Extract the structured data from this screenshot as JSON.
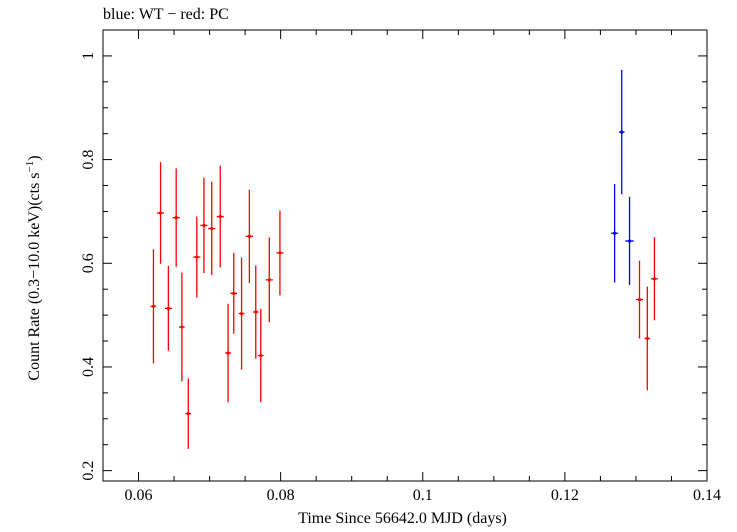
{
  "chart_data": {
    "type": "scatter",
    "title": "blue: WT − red: PC",
    "xlabel": "Time Since 56642.0 MJD (days)",
    "ylabel_main": "Count Rate (0.3−10.0 keV)(cts s",
    "ylabel_sup": "−1",
    "ylabel_end": ")",
    "xlim": [
      0.055,
      0.14
    ],
    "ylim": [
      0.18,
      1.05
    ],
    "xticks": [
      0.06,
      0.08,
      0.1,
      0.12,
      0.14
    ],
    "xtick_labels": [
      "0.06",
      "0.08",
      "0.1",
      "0.12",
      "0.14"
    ],
    "yticks": [
      0.2,
      0.4,
      0.6,
      0.8,
      1.0
    ],
    "ytick_labels": [
      "0.2",
      "0.4",
      "0.6",
      "0.8",
      "1"
    ],
    "x_minor_step": 0.005,
    "y_minor_step": 0.05,
    "series": [
      {
        "name": "PC",
        "color": "#ff0000",
        "points": [
          {
            "x": 0.0621,
            "y": 0.517,
            "yerr": 0.11,
            "xerr": 0.0004
          },
          {
            "x": 0.0631,
            "y": 0.697,
            "yerr": 0.098,
            "xerr": 0.0005
          },
          {
            "x": 0.0642,
            "y": 0.513,
            "yerr": 0.082,
            "xerr": 0.0005
          },
          {
            "x": 0.0653,
            "y": 0.688,
            "yerr": 0.095,
            "xerr": 0.0005
          },
          {
            "x": 0.0661,
            "y": 0.477,
            "yerr": 0.105,
            "xerr": 0.0004
          },
          {
            "x": 0.067,
            "y": 0.31,
            "yerr": 0.068,
            "xerr": 0.0004
          },
          {
            "x": 0.0682,
            "y": 0.612,
            "yerr": 0.078,
            "xerr": 0.0005
          },
          {
            "x": 0.0692,
            "y": 0.673,
            "yerr": 0.092,
            "xerr": 0.0005
          },
          {
            "x": 0.0703,
            "y": 0.667,
            "yerr": 0.09,
            "xerr": 0.0005
          },
          {
            "x": 0.0715,
            "y": 0.69,
            "yerr": 0.098,
            "xerr": 0.0005
          },
          {
            "x": 0.0726,
            "y": 0.427,
            "yerr": 0.095,
            "xerr": 0.0004
          },
          {
            "x": 0.0734,
            "y": 0.542,
            "yerr": 0.078,
            "xerr": 0.0005
          },
          {
            "x": 0.0745,
            "y": 0.503,
            "yerr": 0.108,
            "xerr": 0.0004
          },
          {
            "x": 0.0756,
            "y": 0.652,
            "yerr": 0.09,
            "xerr": 0.0005
          },
          {
            "x": 0.0765,
            "y": 0.506,
            "yerr": 0.09,
            "xerr": 0.0004
          },
          {
            "x": 0.0772,
            "y": 0.422,
            "yerr": 0.09,
            "xerr": 0.0004
          },
          {
            "x": 0.0784,
            "y": 0.568,
            "yerr": 0.082,
            "xerr": 0.0005
          },
          {
            "x": 0.0799,
            "y": 0.62,
            "yerr": 0.082,
            "xerr": 0.0005
          },
          {
            "x": 0.1305,
            "y": 0.53,
            "yerr": 0.075,
            "xerr": 0.0005
          },
          {
            "x": 0.1316,
            "y": 0.455,
            "yerr": 0.1,
            "xerr": 0.0004
          },
          {
            "x": 0.1326,
            "y": 0.57,
            "yerr": 0.08,
            "xerr": 0.0005
          }
        ]
      },
      {
        "name": "WT",
        "color": "#0000ff",
        "points": [
          {
            "x": 0.127,
            "y": 0.658,
            "yerr": 0.095,
            "xerr": 0.0005
          },
          {
            "x": 0.128,
            "y": 0.853,
            "yerr": 0.12,
            "xerr": 0.0004
          },
          {
            "x": 0.1291,
            "y": 0.643,
            "yerr": 0.085,
            "xerr": 0.0006
          }
        ]
      }
    ]
  }
}
